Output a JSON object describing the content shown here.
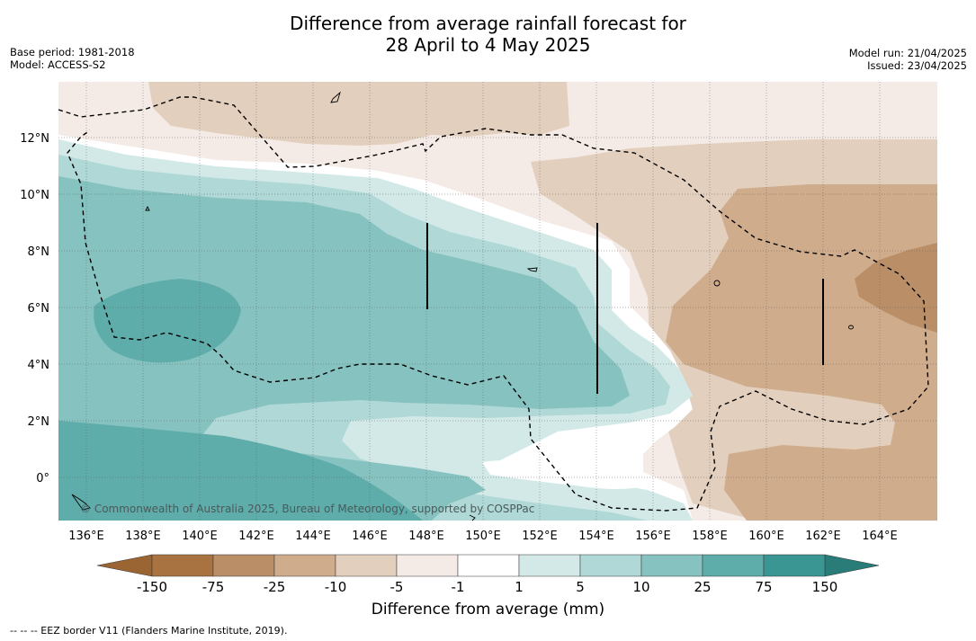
{
  "title_line1": "Difference from average rainfall forecast for",
  "title_line2": "28 April to 4 May 2025",
  "base_period": "Base period: 1981-2018",
  "model": "Model: ACCESS-S2",
  "model_run": "Model run: 21/04/2025",
  "issued": "Issued: 23/04/2025",
  "lon_labels": [
    "136°E",
    "138°E",
    "140°E",
    "142°E",
    "144°E",
    "146°E",
    "148°E",
    "150°E",
    "152°E",
    "154°E",
    "156°E",
    "158°E",
    "160°E",
    "162°E",
    "164°E"
  ],
  "lat_labels": [
    "12°N",
    "10°N",
    "8°N",
    "6°N",
    "4°N",
    "2°N",
    "0°"
  ],
  "copyright": "© Commonwealth of Australia 2025, Bureau of Meteorology, supported by COSPPac",
  "legend": {
    "title": "Difference from average (mm)",
    "labels": [
      "-150",
      "-75",
      "-25",
      "-10",
      "-5",
      "-1",
      "1",
      "5",
      "10",
      "25",
      "75",
      "150"
    ],
    "colors": [
      "#a87340",
      "#ba8f68",
      "#cfac8c",
      "#e3cfbd",
      "#f4ebe6",
      "#ffffff",
      "#d3e9e8",
      "#afd8d6",
      "#86c2c0",
      "#5eadab",
      "#3a9693"
    ],
    "extend_low_color": "#9a6532",
    "extend_high_color": "#2a7c79"
  },
  "footnote": "--  --  -- EEZ border V11 (Flanders Marine Institute, 2019)."
}
